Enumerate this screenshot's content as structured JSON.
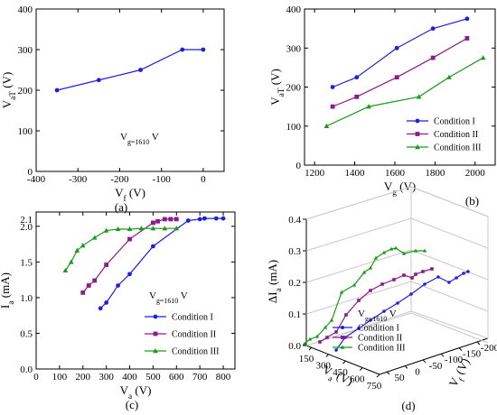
{
  "chart_data": [
    {
      "id": "a",
      "type": "line",
      "panel_label": "(a)",
      "xlabel": "V_f (V)",
      "ylabel": "V_aT (V)",
      "xlim": [
        -400,
        50
      ],
      "ylim": [
        0,
        400
      ],
      "xticks": [
        -400,
        -300,
        -200,
        -100,
        0
      ],
      "yticks": [
        0,
        100,
        200,
        300,
        400
      ],
      "annotation": "V_g=1610 V",
      "series": [
        {
          "color": "#1f1fe0",
          "marker": "circle",
          "x": [
            -350,
            -250,
            -150,
            -50,
            0
          ],
          "y": [
            200,
            225,
            250,
            300,
            300
          ]
        }
      ]
    },
    {
      "id": "b",
      "type": "line",
      "panel_label": "(b)",
      "xlabel": "V_g (V)",
      "ylabel": "V_aT (V)",
      "xlim": [
        1150,
        2100
      ],
      "ylim": [
        0,
        400
      ],
      "xticks": [
        1200,
        1400,
        1600,
        1800,
        2000
      ],
      "yticks": [
        0,
        100,
        200,
        300,
        400
      ],
      "legend_position": "bottom-right",
      "series": [
        {
          "name": "Condition I",
          "color": "#1f1fe0",
          "marker": "circle",
          "x": [
            1290,
            1410,
            1610,
            1790,
            1960
          ],
          "y": [
            200,
            225,
            300,
            350,
            375
          ]
        },
        {
          "name": "Condition II",
          "color": "#8b1a8b",
          "marker": "square",
          "x": [
            1290,
            1410,
            1610,
            1790,
            1960
          ],
          "y": [
            150,
            175,
            225,
            275,
            325
          ]
        },
        {
          "name": "Condition III",
          "color": "#1a9a1a",
          "marker": "triangle",
          "x": [
            1260,
            1470,
            1720,
            1870,
            2040
          ],
          "y": [
            100,
            150,
            175,
            225,
            275
          ]
        }
      ]
    },
    {
      "id": "c",
      "type": "line",
      "panel_label": "(c)",
      "xlabel": "V_a (V)",
      "ylabel": "I_a (mA)",
      "xlim": [
        0,
        850
      ],
      "ylim": [
        0,
        2.2
      ],
      "xticks": [
        0,
        100,
        200,
        300,
        400,
        500,
        600,
        700,
        800
      ],
      "yticks": [
        0.0,
        0.5,
        1.0,
        1.5,
        2.0
      ],
      "ytick_labels": [
        "0.0",
        "0.5",
        "1.0",
        "1.5",
        "2.0"
      ],
      "extra_ytick_labels": [
        "2.1"
      ],
      "annotation": "V_g=1610 V",
      "legend_position": "bottom-right",
      "series": [
        {
          "name": "Condition I",
          "color": "#1f1fe0",
          "marker": "circle",
          "x": [
            275,
            300,
            350,
            400,
            500,
            650,
            700,
            720,
            770,
            800
          ],
          "y": [
            0.85,
            0.93,
            1.17,
            1.33,
            1.72,
            2.08,
            2.1,
            2.11,
            2.11,
            2.11
          ]
        },
        {
          "name": "Condition II",
          "color": "#8b1a8b",
          "marker": "square",
          "x": [
            200,
            225,
            250,
            300,
            400,
            500,
            520,
            550,
            575,
            600
          ],
          "y": [
            1.07,
            1.17,
            1.24,
            1.46,
            1.82,
            2.05,
            2.07,
            2.1,
            2.1,
            2.1
          ]
        },
        {
          "name": "Condition III",
          "color": "#1a9a1a",
          "marker": "triangle",
          "x": [
            125,
            150,
            175,
            200,
            250,
            300,
            350,
            400,
            450,
            500,
            550,
            600
          ],
          "y": [
            1.38,
            1.5,
            1.66,
            1.73,
            1.84,
            1.94,
            1.96,
            1.96,
            1.97,
            1.97,
            1.97,
            1.97
          ]
        }
      ]
    },
    {
      "id": "d",
      "type": "line",
      "panel_label": "(d)",
      "zlabel": "ΔI_a (mA)",
      "xlabel": "V_a (V)",
      "ylabel": "V_f (V)",
      "zlim": [
        0.0,
        0.4
      ],
      "zticks": [
        0.0,
        0.1,
        0.2,
        0.3,
        0.4
      ],
      "zticks_labels": [
        "0.0",
        "0.1",
        "0.2",
        "0.3",
        "0.4"
      ],
      "va_ticks": [
        "150",
        "300",
        "450",
        "600",
        "750"
      ],
      "vf_ticks": [
        "-200",
        "-150",
        "-100",
        "-50",
        "0",
        "50"
      ],
      "annotation": "V_g=1610 V",
      "legend_position": "bottom-right",
      "series": [
        {
          "name": "Condition I",
          "color": "#1f1fe0",
          "marker": "circle"
        },
        {
          "name": "Condition II",
          "color": "#8b1a8b",
          "marker": "square"
        },
        {
          "name": "Condition III",
          "color": "#1a9a1a",
          "marker": "triangle"
        }
      ]
    }
  ]
}
